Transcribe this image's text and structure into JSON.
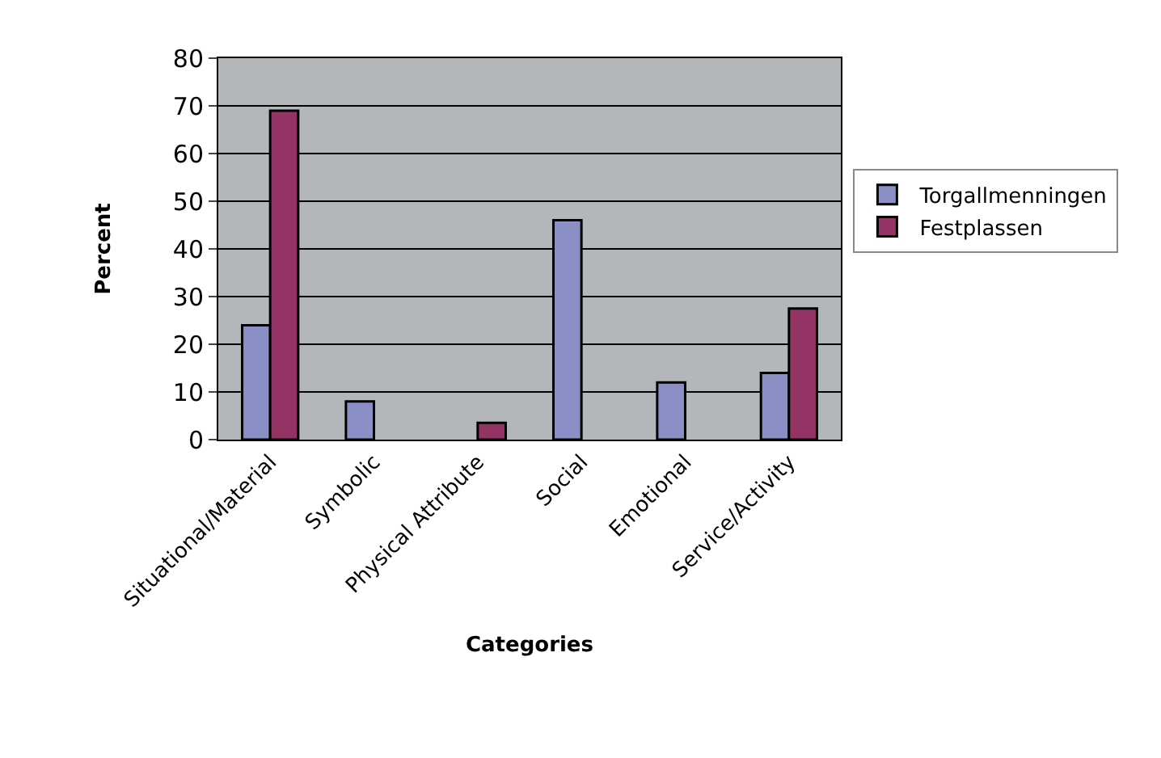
{
  "chart_data": {
    "type": "bar",
    "xlabel": "Categories",
    "ylabel": "Percent",
    "categories": [
      "Situational/Material",
      "Symbolic",
      "Physical Attribute",
      "Social",
      "Emotional",
      "Service/Activity"
    ],
    "series": [
      {
        "name": "Torgallmenningen",
        "color": "#8a8fc6",
        "values": [
          24,
          8,
          null,
          46,
          12,
          14
        ]
      },
      {
        "name": "Festplassen",
        "color": "#943464",
        "values": [
          69,
          null,
          3.5,
          null,
          null,
          27.5
        ]
      }
    ],
    "ylim": [
      0,
      80
    ],
    "yticks": [
      0,
      10,
      20,
      30,
      40,
      50,
      60,
      70,
      80
    ],
    "grid": "y",
    "legend": "right"
  }
}
